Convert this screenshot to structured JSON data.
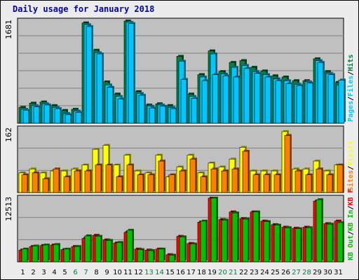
{
  "title": "Daily usage for January 2018",
  "colors": {
    "title": "#0000aa",
    "hits": "#008040",
    "files": "#00c8ff",
    "pages": "#00c8ff",
    "visits": "#ffff00",
    "sites": "#ff8000",
    "kbf": "#ff0000",
    "kbin": "#00c000",
    "kbout": "#00c000",
    "weekend": "#008040",
    "plot_bg": "#c0c0c0",
    "frame_bg": "#ececec"
  },
  "chart_data": [
    {
      "type": "bar",
      "name": "hits-files-pages",
      "ymax": 1681,
      "ymax_label": "1681",
      "legend": [
        {
          "text": "Hits",
          "color": "#008040"
        },
        {
          "text": "Files",
          "color": "#00c8ff"
        },
        {
          "text": "Pages",
          "color": "#00c8ff"
        }
      ],
      "series": [
        {
          "name": "Hits",
          "values": [
            260,
            330,
            350,
            290,
            210,
            230,
            1650,
            1200,
            680,
            480,
            1700,
            520,
            300,
            320,
            290,
            1100,
            480,
            800,
            1190,
            850,
            1000,
            1030,
            920,
            860,
            780,
            760,
            700,
            700,
            1060,
            850,
            670
          ]
        },
        {
          "name": "Files",
          "values": [
            230,
            290,
            320,
            260,
            160,
            200,
            1620,
            1160,
            630,
            440,
            1660,
            490,
            280,
            300,
            260,
            1020,
            440,
            760,
            1140,
            810,
            920,
            950,
            850,
            800,
            730,
            700,
            640,
            680,
            1030,
            820,
            630
          ]
        },
        {
          "name": "Pages",
          "values": [
            210,
            270,
            300,
            240,
            140,
            180,
            1590,
            1140,
            590,
            400,
            1640,
            460,
            250,
            280,
            240,
            720,
            410,
            700,
            800,
            780,
            760,
            900,
            820,
            760,
            700,
            650,
            620,
            660,
            1000,
            800,
            710
          ]
        }
      ]
    },
    {
      "type": "bar",
      "name": "visits-sites",
      "ymax": 162,
      "ymax_label": "162",
      "legend": [
        {
          "text": "Visits",
          "color": "#ffff00"
        },
        {
          "text": "Sites",
          "color": "#ff8000"
        }
      ],
      "series": [
        {
          "name": "Visits",
          "values": [
            50,
            60,
            50,
            55,
            55,
            60,
            70,
            110,
            120,
            70,
            95,
            55,
            50,
            95,
            40,
            65,
            95,
            50,
            75,
            65,
            85,
            115,
            55,
            55,
            55,
            155,
            60,
            60,
            80,
            55,
            70
          ]
        },
        {
          "name": "Sites",
          "values": [
            45,
            50,
            35,
            60,
            40,
            55,
            55,
            70,
            70,
            40,
            70,
            45,
            45,
            80,
            45,
            55,
            85,
            40,
            60,
            55,
            60,
            105,
            45,
            45,
            45,
            145,
            55,
            45,
            60,
            45,
            70
          ]
        }
      ]
    },
    {
      "type": "bar",
      "name": "kb",
      "ymax": 12513,
      "ymax_label": "12513",
      "legend": [
        {
          "text": "KB F",
          "color": "#ff0000"
        },
        {
          "text": "KB In",
          "color": "#00c000"
        },
        {
          "text": "KB Out",
          "color": "#00c000"
        }
      ],
      "series": [
        {
          "name": "KB F",
          "values": [
            2300,
            3000,
            3200,
            3300,
            2400,
            3000,
            4600,
            5200,
            4300,
            3700,
            5800,
            2500,
            2300,
            2500,
            1400,
            5000,
            3600,
            7800,
            12600,
            8300,
            9800,
            8500,
            9800,
            8000,
            7300,
            6800,
            6600,
            6800,
            11900,
            7500,
            8000
          ]
        },
        {
          "name": "KB In",
          "values": [
            2500,
            3100,
            3300,
            3400,
            2500,
            3000,
            5100,
            5000,
            4200,
            3800,
            6200,
            2400,
            2200,
            2500,
            1300,
            4900,
            3500,
            8000,
            12513,
            8200,
            9600,
            8400,
            9800,
            7900,
            7200,
            6700,
            6500,
            6700,
            12200,
            7400,
            7700
          ]
        }
      ]
    }
  ],
  "x_labels": [
    "1",
    "2",
    "3",
    "4",
    "5",
    "6",
    "7",
    "8",
    "9",
    "10",
    "11",
    "12",
    "13",
    "14",
    "15",
    "16",
    "17",
    "18",
    "19",
    "20",
    "21",
    "22",
    "23",
    "24",
    "25",
    "26",
    "27",
    "28",
    "29",
    "30",
    "31"
  ],
  "weekend_days": [
    6,
    7,
    13,
    14,
    20,
    21,
    27,
    28
  ]
}
